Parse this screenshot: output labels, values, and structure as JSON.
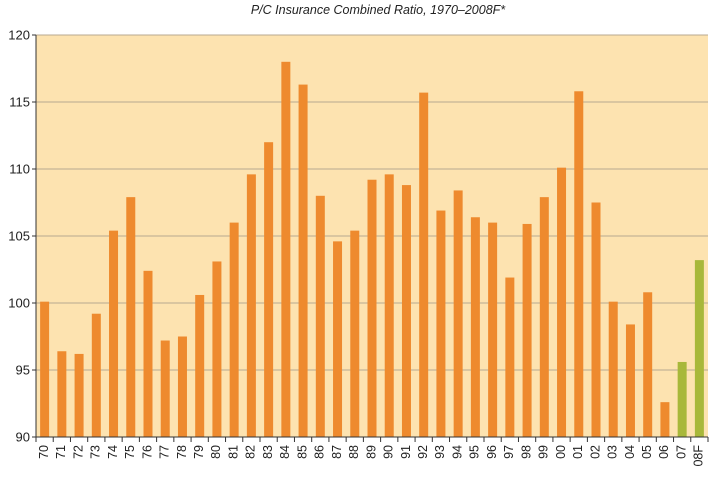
{
  "chart_data": {
    "type": "bar",
    "title": "P/C Insurance Combined Ratio, 1970–2008F*",
    "xlabel": "",
    "ylabel": "",
    "ylim": [
      90,
      120
    ],
    "yticks": [
      90,
      95,
      100,
      105,
      110,
      115,
      120
    ],
    "grid": true,
    "legend": "none",
    "categories": [
      "70",
      "71",
      "72",
      "73",
      "74",
      "75",
      "76",
      "77",
      "78",
      "79",
      "80",
      "81",
      "82",
      "83",
      "84",
      "85",
      "86",
      "87",
      "88",
      "89",
      "90",
      "91",
      "92",
      "93",
      "94",
      "95",
      "96",
      "97",
      "98",
      "99",
      "00",
      "01",
      "02",
      "03",
      "04",
      "05",
      "06",
      "07",
      "08F"
    ],
    "values": [
      100.1,
      96.4,
      96.2,
      99.2,
      105.4,
      107.9,
      102.4,
      97.2,
      97.5,
      100.6,
      103.1,
      106.0,
      109.6,
      112.0,
      118.0,
      116.3,
      108.0,
      104.6,
      105.4,
      109.2,
      109.6,
      108.8,
      115.7,
      106.9,
      108.4,
      106.4,
      106.0,
      101.9,
      105.9,
      107.9,
      110.1,
      115.8,
      107.5,
      100.1,
      98.4,
      100.8,
      92.6,
      95.6,
      103.2
    ],
    "colors": {
      "actual": "#ee8a2e",
      "forecast": "#a8b83a",
      "plot_background": "#fde3b0",
      "gridline": "#b8a890",
      "axis": "#333333"
    },
    "forecast_categories": [
      "07",
      "08F"
    ]
  }
}
